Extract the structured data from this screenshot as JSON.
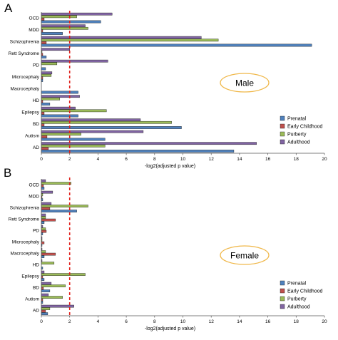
{
  "colors": {
    "Prenatal": "#4f81bd",
    "Early Childhood": "#c0504d",
    "Purberty": "#9bbb59",
    "Adulthood": "#8064a2",
    "threshold": "#e0201b",
    "ellipse": "#f0b84a"
  },
  "chart_data": [
    {
      "type": "bar",
      "orientation": "horizontal",
      "panel": "A",
      "annotation": "Male",
      "categories": [
        "OCD",
        "MDD",
        "Schizophrenia",
        "Rett Syndrome",
        "PD",
        "Microcephaly",
        "Macrocephaly",
        "HD",
        "Epilepsy",
        "BD",
        "Autism",
        "AD"
      ],
      "series": [
        {
          "name": "Prenatal",
          "values": [
            4.2,
            1.5,
            19.1,
            0.35,
            0.3,
            0.1,
            2.6,
            0.6,
            2.6,
            9.9,
            4.5,
            13.6
          ]
        },
        {
          "name": "Early Childhood",
          "values": [
            0.2,
            0.1,
            0.35,
            0.1,
            0,
            0.1,
            0,
            0.1,
            0.2,
            0.2,
            0.4,
            0.5
          ]
        },
        {
          "name": "Purberty",
          "values": [
            2.5,
            3.3,
            12.5,
            0.05,
            1.1,
            0.7,
            0,
            1.3,
            4.6,
            9.2,
            2.8,
            4.5
          ]
        },
        {
          "name": "Adulthood",
          "values": [
            5.0,
            3.1,
            11.3,
            2.0,
            4.7,
            0.75,
            0,
            2.7,
            2.4,
            7.0,
            7.2,
            15.2
          ]
        }
      ],
      "xlabel": "-log2(adjusted p value)",
      "xlim": [
        0,
        20
      ],
      "xticks": [
        "0",
        "2",
        "4",
        "6",
        "8",
        "10",
        "12",
        "14",
        "16",
        "18",
        "20"
      ],
      "threshold": 2,
      "legend": "right"
    },
    {
      "type": "bar",
      "orientation": "horizontal",
      "panel": "B",
      "annotation": "Female",
      "categories": [
        "OCD",
        "MDD",
        "Schizophrenia",
        "Rett Syndrome",
        "PD",
        "Microcephaly",
        "Macrocephaly",
        "HD",
        "Epilepsy",
        "BD",
        "Autism",
        "AD"
      ],
      "series": [
        {
          "name": "Prenatal",
          "values": [
            0.2,
            0.1,
            2.5,
            0.2,
            0.1,
            0.05,
            0.2,
            0.1,
            0.2,
            0.6,
            0.1,
            0.45
          ]
        },
        {
          "name": "Early Childhood",
          "values": [
            0.15,
            0.05,
            0.6,
            1.0,
            0.35,
            0.2,
            1.0,
            0,
            0.1,
            0.15,
            0.1,
            0.3
          ]
        },
        {
          "name": "Purberty",
          "values": [
            2.1,
            0.1,
            3.3,
            0.3,
            0.3,
            0.05,
            0.3,
            0.9,
            3.1,
            1.7,
            1.5,
            0.6
          ]
        },
        {
          "name": "Adulthood",
          "values": [
            0.3,
            0.8,
            0.7,
            0.3,
            0.1,
            0.05,
            0.05,
            0.05,
            0.2,
            0.7,
            0.5,
            2.3
          ]
        }
      ],
      "xlabel": "-log2(adjusted p value)",
      "xlim": [
        0,
        20
      ],
      "xticks": [
        "0",
        "2",
        "4",
        "6",
        "8",
        "10",
        "12",
        "14",
        "16",
        "18",
        "20"
      ],
      "threshold": 2,
      "legend": "right"
    }
  ]
}
